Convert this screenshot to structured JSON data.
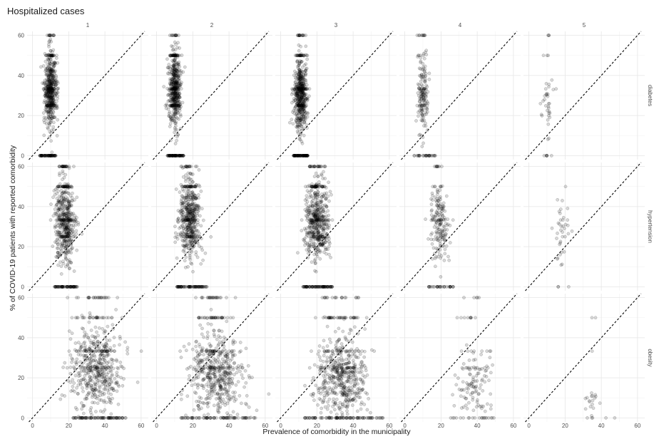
{
  "figure": {
    "title": "Hospitalized cases"
  },
  "chart_data": {
    "type": "scatter",
    "title": "Hospitalized cases",
    "xlabel": "Prevalence of comorbidity in the municipality",
    "ylabel": "% of COVID-19 patients with reported comorbidity",
    "facet_columns": [
      "1",
      "2",
      "3",
      "4",
      "5"
    ],
    "facet_rows": [
      "diabetes",
      "hypertension",
      "obesity"
    ],
    "xlim": [
      -3,
      64
    ],
    "ylim": [
      -2,
      62
    ],
    "x_ticks": [
      0,
      20,
      40,
      60
    ],
    "y_ticks": [
      0,
      20,
      40,
      60
    ],
    "reference_line": "y = x (dashed)",
    "grid": true,
    "point_color": "#000000",
    "point_alpha": 0.15,
    "panel_clusters": [
      {
        "col": "1",
        "row": "diabetes",
        "x_center": 10,
        "x_spread": 1.6,
        "y_center": 33,
        "y_spread": 9,
        "n_points": 620,
        "zero_x_range": [
          4,
          13
        ]
      },
      {
        "col": "2",
        "row": "diabetes",
        "x_center": 10,
        "x_spread": 1.6,
        "y_center": 33,
        "y_spread": 9,
        "n_points": 620,
        "zero_x_range": [
          6,
          15
        ]
      },
      {
        "col": "3",
        "row": "diabetes",
        "x_center": 11,
        "x_spread": 1.8,
        "y_center": 30,
        "y_spread": 9,
        "n_points": 660,
        "zero_x_range": [
          7,
          15
        ]
      },
      {
        "col": "4",
        "row": "diabetes",
        "x_center": 10,
        "x_spread": 1.4,
        "y_center": 30,
        "y_spread": 11,
        "n_points": 200,
        "zero_x_range": [
          5,
          17
        ]
      },
      {
        "col": "5",
        "row": "diabetes",
        "x_center": 10,
        "x_spread": 1.4,
        "y_center": 25,
        "y_spread": 9,
        "n_points": 45,
        "zero_x_range": [
          9,
          14
        ]
      },
      {
        "col": "1",
        "row": "hypertension",
        "x_center": 18,
        "x_spread": 2.8,
        "y_center": 32,
        "y_spread": 10,
        "n_points": 600,
        "zero_x_range": [
          12,
          25
        ]
      },
      {
        "col": "2",
        "row": "hypertension",
        "x_center": 18,
        "x_spread": 2.8,
        "y_center": 34,
        "y_spread": 10,
        "n_points": 620,
        "zero_x_range": [
          11,
          28
        ]
      },
      {
        "col": "3",
        "row": "hypertension",
        "x_center": 20,
        "x_spread": 3.2,
        "y_center": 32,
        "y_spread": 10,
        "n_points": 640,
        "zero_x_range": [
          12,
          29
        ]
      },
      {
        "col": "4",
        "row": "hypertension",
        "x_center": 19,
        "x_spread": 2.8,
        "y_center": 33,
        "y_spread": 11,
        "n_points": 220,
        "zero_x_range": [
          13,
          27
        ]
      },
      {
        "col": "5",
        "row": "hypertension",
        "x_center": 18,
        "x_spread": 2.2,
        "y_center": 28,
        "y_spread": 8,
        "n_points": 40,
        "zero_x_range": [
          14,
          22
        ]
      },
      {
        "col": "1",
        "row": "obesity",
        "x_center": 35,
        "x_spread": 7,
        "y_center": 24,
        "y_spread": 11,
        "n_points": 640,
        "zero_x_range": [
          22,
          52
        ]
      },
      {
        "col": "2",
        "row": "obesity",
        "x_center": 33,
        "x_spread": 7,
        "y_center": 21,
        "y_spread": 10,
        "n_points": 640,
        "zero_x_range": [
          13,
          55
        ]
      },
      {
        "col": "3",
        "row": "obesity",
        "x_center": 33,
        "x_spread": 7,
        "y_center": 20,
        "y_spread": 10,
        "n_points": 660,
        "zero_x_range": [
          12,
          58
        ]
      },
      {
        "col": "4",
        "row": "obesity",
        "x_center": 37,
        "x_spread": 5,
        "y_center": 14,
        "y_spread": 8,
        "n_points": 150,
        "zero_x_range": [
          25,
          50
        ]
      },
      {
        "col": "5",
        "row": "obesity",
        "x_center": 35,
        "x_spread": 2,
        "y_center": 8,
        "y_spread": 5,
        "n_points": 25,
        "zero_x_range": [
          30,
          48
        ]
      }
    ]
  }
}
